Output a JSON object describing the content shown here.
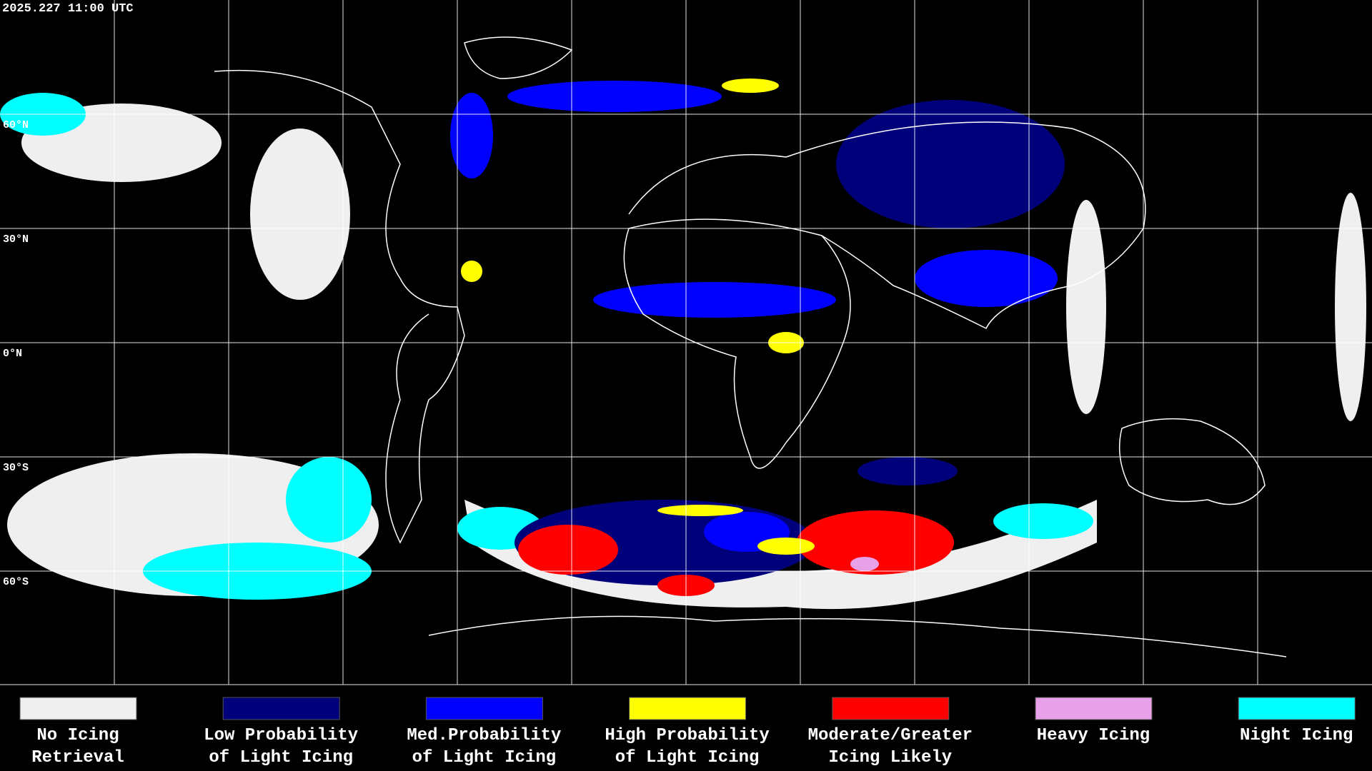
{
  "header": {
    "timestamp": "2025.227 11:00 UTC"
  },
  "map": {
    "lat_labels": [
      "60°N",
      "30°N",
      "0°N",
      "30°S",
      "60°S"
    ]
  },
  "legend": [
    {
      "label_lines": [
        "No Icing",
        "Retrieval"
      ],
      "color": "#efefef"
    },
    {
      "label_lines": [
        "Low Probability",
        "of Light Icing"
      ],
      "color": "#00007a"
    },
    {
      "label_lines": [
        "Med.Probability",
        "of Light Icing"
      ],
      "color": "#0000ff"
    },
    {
      "label_lines": [
        "High Probability",
        "of Light Icing"
      ],
      "color": "#ffff00"
    },
    {
      "label_lines": [
        "Moderate/Greater",
        "Icing Likely"
      ],
      "color": "#ff0000"
    },
    {
      "label_lines": [
        "Heavy Icing"
      ],
      "color": "#e8a0e8"
    },
    {
      "label_lines": [
        "Night Icing"
      ],
      "color": "#00ffff"
    }
  ]
}
